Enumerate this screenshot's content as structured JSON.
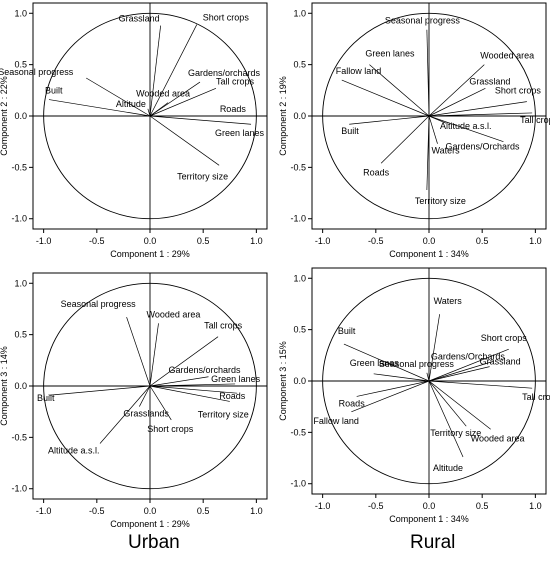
{
  "captions": {
    "urban": "Urban",
    "rural": "Rural"
  },
  "chart_data": [
    {
      "type": "scatter",
      "group": "Urban",
      "xlabel": "Component 1 : 29%",
      "ylabel": "Component 2 : 22%",
      "xlim": [
        -1.1,
        1.1
      ],
      "ylim": [
        -1.1,
        1.1
      ],
      "xticks": [
        "-1.0",
        "-0.5",
        "0.0",
        "0.5",
        "1.0"
      ],
      "yticks": [
        "1.0",
        "0.5",
        "0.0",
        "-0.5",
        "-1.0"
      ],
      "grid": false,
      "vectors": [
        {
          "label": "Grassland",
          "x": 0.1,
          "y": 0.88
        },
        {
          "label": "Short crops",
          "x": 0.44,
          "y": 0.89
        },
        {
          "label": "Seasonal progress",
          "x": -0.6,
          "y": 0.37
        },
        {
          "label": "Gardens/orchards",
          "x": 0.47,
          "y": 0.33
        },
        {
          "label": "Tall crops",
          "x": 0.62,
          "y": 0.27
        },
        {
          "label": "Built",
          "x": -0.95,
          "y": 0.16
        },
        {
          "label": "Wooded area",
          "x": 0.17,
          "y": 0.13
        },
        {
          "label": "Altitude",
          "x": -0.02,
          "y": 0.07
        },
        {
          "label": "Roads",
          "x": 0.6,
          "y": 0.0
        },
        {
          "label": "Green lanes",
          "x": 0.95,
          "y": -0.08
        },
        {
          "label": "Territory size",
          "x": 0.65,
          "y": -0.48
        }
      ]
    },
    {
      "type": "scatter",
      "group": "Rural",
      "xlabel": "Component 1 : 34%",
      "ylabel": "Component 2 : 19%",
      "xlim": [
        -1.1,
        1.1
      ],
      "ylim": [
        -1.1,
        1.1
      ],
      "xticks": [
        "-1.0",
        "-0.5",
        "0.0",
        "0.5",
        "1.0"
      ],
      "yticks": [
        "1.0",
        "0.5",
        "0.0",
        "-0.5",
        "-1.0"
      ],
      "grid": false,
      "vectors": [
        {
          "label": "Seasonal progress",
          "x": -0.02,
          "y": 0.84
        },
        {
          "label": "Green lanes",
          "x": -0.56,
          "y": 0.5
        },
        {
          "label": "Wooded area",
          "x": 0.52,
          "y": 0.5
        },
        {
          "label": "Fallow land",
          "x": -0.82,
          "y": 0.35
        },
        {
          "label": "Grassland",
          "x": 0.53,
          "y": 0.27
        },
        {
          "label": "Short crops",
          "x": 0.92,
          "y": 0.14
        },
        {
          "label": "Tall crops",
          "x": 0.97,
          "y": 0.03
        },
        {
          "label": "Built",
          "x": -0.75,
          "y": -0.08
        },
        {
          "label": "Altitude a.s.l.",
          "x": 0.16,
          "y": -0.07
        },
        {
          "label": "Gardens/Orchards",
          "x": 0.7,
          "y": -0.25
        },
        {
          "label": "Waters",
          "x": 0.08,
          "y": -0.27
        },
        {
          "label": "Roads",
          "x": -0.45,
          "y": -0.46
        },
        {
          "label": "Territory size",
          "x": -0.02,
          "y": -0.72
        }
      ]
    },
    {
      "type": "scatter",
      "group": "Urban",
      "xlabel": "Component 1 : 29%",
      "ylabel": "Component 3 : 14%",
      "xlim": [
        -1.1,
        1.1
      ],
      "ylim": [
        -1.1,
        1.1
      ],
      "xticks": [
        "-1.0",
        "-0.5",
        "0.0",
        "0.5",
        "1.0"
      ],
      "yticks": [
        "1.0",
        "0.5",
        "0.0",
        "-0.5",
        "-1.0"
      ],
      "grid": false,
      "vectors": [
        {
          "label": "Seasonal progress",
          "x": -0.22,
          "y": 0.67
        },
        {
          "label": "Wooded area",
          "x": 0.08,
          "y": 0.61
        },
        {
          "label": "Tall crops",
          "x": 0.64,
          "y": 0.48
        },
        {
          "label": "Gardens/orchards",
          "x": 0.55,
          "y": 0.09
        },
        {
          "label": "Green lanes",
          "x": 0.8,
          "y": 0.02
        },
        {
          "label": "Built",
          "x": -0.95,
          "y": -0.09
        },
        {
          "label": "Roads",
          "x": 0.82,
          "y": -0.07
        },
        {
          "label": "Territory size",
          "x": 0.75,
          "y": -0.15
        },
        {
          "label": "Grasslands",
          "x": -0.1,
          "y": -0.2
        },
        {
          "label": "Short crops",
          "x": 0.2,
          "y": -0.33
        },
        {
          "label": "Altitude a.s.l.",
          "x": -0.47,
          "y": -0.56
        }
      ]
    },
    {
      "type": "scatter",
      "group": "Rural",
      "xlabel": "Component 1 : 34%",
      "ylabel": "Component 3 : 15%",
      "xlim": [
        -1.1,
        1.1
      ],
      "ylim": [
        -1.1,
        1.1
      ],
      "xticks": [
        "-1.0",
        "-0.5",
        "0.0",
        "0.5",
        "1.0"
      ],
      "yticks": [
        "1.0",
        "0.5",
        "0.0",
        "-0.5",
        "-1.0"
      ],
      "grid": false,
      "vectors": [
        {
          "label": "Waters",
          "x": 0.1,
          "y": 0.65
        },
        {
          "label": "Built",
          "x": -0.8,
          "y": 0.36
        },
        {
          "label": "Short crops",
          "x": 0.75,
          "y": 0.31
        },
        {
          "label": "Gardens/Orchards",
          "x": 0.6,
          "y": 0.19
        },
        {
          "label": "Grassland",
          "x": 0.57,
          "y": 0.14
        },
        {
          "label": "Green lanes",
          "x": -0.52,
          "y": 0.07
        },
        {
          "label": "Seasonal progress",
          "x": -0.02,
          "y": 0.08
        },
        {
          "label": "Tall crops",
          "x": 0.97,
          "y": -0.07
        },
        {
          "label": "Roads",
          "x": -0.68,
          "y": -0.15
        },
        {
          "label": "Fallow land",
          "x": -0.73,
          "y": -0.3
        },
        {
          "label": "Territory size",
          "x": 0.35,
          "y": -0.44
        },
        {
          "label": "Wooded area",
          "x": 0.58,
          "y": -0.47
        },
        {
          "label": "Altitude",
          "x": 0.32,
          "y": -0.74
        }
      ]
    }
  ]
}
